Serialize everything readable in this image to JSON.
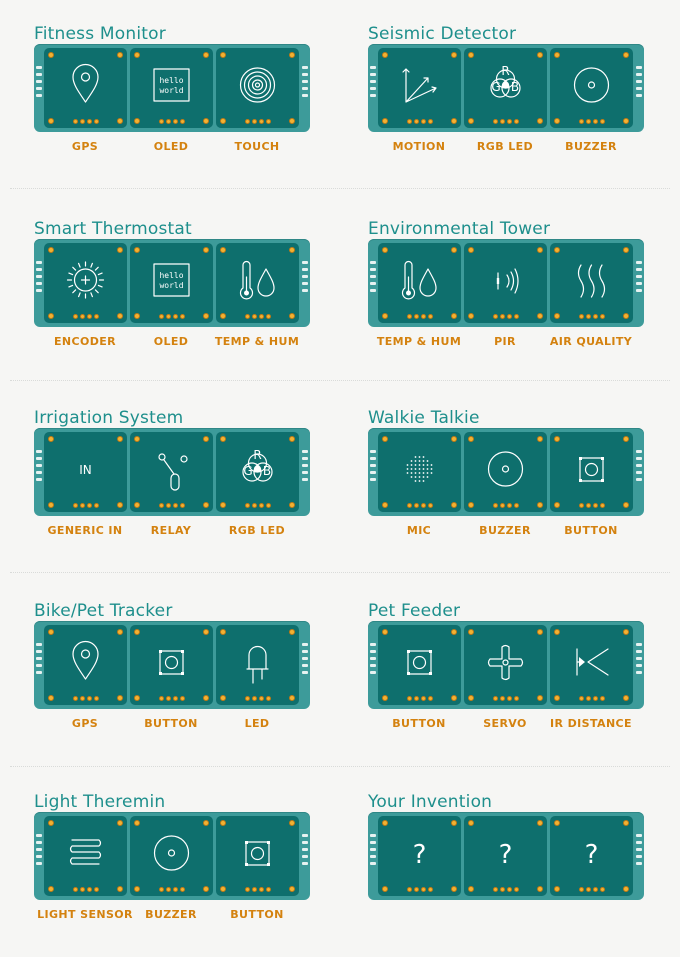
{
  "projects": [
    {
      "title": "Fitness Monitor",
      "modules": [
        {
          "label": "GPS",
          "icon": "map-pin-icon"
        },
        {
          "label": "OLED",
          "icon": "oled-screen-icon",
          "screen_text": [
            "hello",
            "world"
          ]
        },
        {
          "label": "TOUCH",
          "icon": "touch-icon"
        }
      ]
    },
    {
      "title": "Seismic Detector",
      "modules": [
        {
          "label": "MOTION",
          "icon": "axes-icon"
        },
        {
          "label": "RGB LED",
          "icon": "rgb-circles-icon",
          "screen_text": [
            "R",
            "G",
            "B"
          ]
        },
        {
          "label": "BUZZER",
          "icon": "buzzer-icon"
        }
      ]
    },
    {
      "title": "Smart Thermostat",
      "modules": [
        {
          "label": "ENCODER",
          "icon": "encoder-dial-icon"
        },
        {
          "label": "OLED",
          "icon": "oled-screen-icon",
          "screen_text": [
            "hello",
            "world"
          ]
        },
        {
          "label": "TEMP & HUM",
          "icon": "thermometer-drop-icon"
        }
      ]
    },
    {
      "title": "Environmental Tower",
      "modules": [
        {
          "label": "TEMP & HUM",
          "icon": "thermometer-drop-icon"
        },
        {
          "label": "PIR",
          "icon": "motion-waves-icon"
        },
        {
          "label": "AIR QUALITY",
          "icon": "air-waves-icon"
        }
      ]
    },
    {
      "title": "Irrigation System",
      "modules": [
        {
          "label": "GENERIC IN",
          "icon": "generic-in-icon",
          "screen_text": [
            "IN"
          ]
        },
        {
          "label": "RELAY",
          "icon": "relay-switch-icon"
        },
        {
          "label": "RGB LED",
          "icon": "rgb-circles-icon",
          "screen_text": [
            "R",
            "G",
            "B"
          ]
        }
      ]
    },
    {
      "title": "Walkie Talkie",
      "modules": [
        {
          "label": "MIC",
          "icon": "mic-grid-icon"
        },
        {
          "label": "BUZZER",
          "icon": "buzzer-icon"
        },
        {
          "label": "BUTTON",
          "icon": "push-button-icon"
        }
      ]
    },
    {
      "title": "Bike/Pet Tracker",
      "modules": [
        {
          "label": "GPS",
          "icon": "map-pin-icon"
        },
        {
          "label": "BUTTON",
          "icon": "push-button-icon"
        },
        {
          "label": "LED",
          "icon": "led-icon"
        }
      ]
    },
    {
      "title": "Pet Feeder",
      "modules": [
        {
          "label": "BUTTON",
          "icon": "push-button-icon"
        },
        {
          "label": "SERVO",
          "icon": "servo-icon"
        },
        {
          "label": "IR DISTANCE",
          "icon": "ir-distance-icon"
        }
      ]
    },
    {
      "title": "Light Theremin",
      "modules": [
        {
          "label": "LIGHT SENSOR",
          "icon": "light-sensor-icon"
        },
        {
          "label": "BUZZER",
          "icon": "buzzer-icon"
        },
        {
          "label": "BUTTON",
          "icon": "push-button-icon"
        }
      ]
    },
    {
      "title": "Your Invention",
      "modules": [
        {
          "label": "",
          "icon": "question-mark-icon",
          "screen_text": [
            "?"
          ]
        },
        {
          "label": "",
          "icon": "question-mark-icon",
          "screen_text": [
            "?"
          ]
        },
        {
          "label": "",
          "icon": "question-mark-icon",
          "screen_text": [
            "?"
          ]
        }
      ]
    }
  ],
  "colors": {
    "title": "#1e8f8c",
    "label": "#d4820f",
    "board": "#3d9b9a",
    "module": "#0e6f6d",
    "pad": "#f2b233",
    "background": "#f6f6f4"
  }
}
